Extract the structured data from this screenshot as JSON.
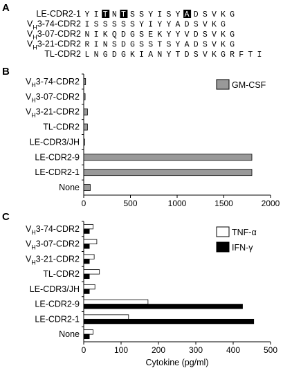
{
  "panels": {
    "a": "A",
    "b": "B",
    "c": "C"
  },
  "sequences": [
    {
      "name_parts": [
        "LE-CDR2-1"
      ],
      "residues": "YITNTSSYISYADSVKG",
      "highlight": [
        2,
        4,
        11
      ]
    },
    {
      "name_parts": [
        "V",
        "H",
        "3-74-CDR2"
      ],
      "residues": "ISSSSSYIYYADSVKG",
      "highlight": []
    },
    {
      "name_parts": [
        "V",
        "H",
        "3-07-CDR2"
      ],
      "residues": "NIKQDGSEKYYVDSVKG",
      "highlight": []
    },
    {
      "name_parts": [
        "V",
        "H",
        "3-21-CDR2"
      ],
      "residues": "RINSDGSSTSYADSVKG",
      "highlight": []
    },
    {
      "name_parts": [
        "TL-CDR2"
      ],
      "residues": "LNGDGKIANYTDSVKGRFTI",
      "highlight": []
    }
  ],
  "chart_data": [
    {
      "type": "bar",
      "orientation": "horizontal",
      "categories": [
        {
          "parts": [
            "V",
            "H",
            "3-74-CDR2"
          ]
        },
        {
          "parts": [
            "V",
            "H",
            "3-07-CDR2"
          ]
        },
        {
          "parts": [
            "V",
            "H",
            "3-21-CDR2"
          ]
        },
        {
          "parts": [
            "TL-CDR2"
          ]
        },
        {
          "parts": [
            "LE-CDR3/JH"
          ]
        },
        {
          "parts": [
            "LE-CDR2-9"
          ]
        },
        {
          "parts": [
            "LE-CDR2-1"
          ]
        },
        {
          "parts": [
            "None"
          ]
        }
      ],
      "series": [
        {
          "name": "GM-CSF",
          "color": "#999999",
          "values": [
            20,
            15,
            40,
            40,
            10,
            1800,
            1800,
            70
          ]
        }
      ],
      "xlim": [
        0,
        2000
      ],
      "xticks": [
        0,
        500,
        1000,
        1500,
        2000
      ],
      "xlabel": "",
      "legend": "top-right"
    },
    {
      "type": "bar",
      "orientation": "horizontal",
      "categories": [
        {
          "parts": [
            "V",
            "H",
            "3-74-CDR2"
          ]
        },
        {
          "parts": [
            "V",
            "H",
            "3-07-CDR2"
          ]
        },
        {
          "parts": [
            "V",
            "H",
            "3-21-CDR2"
          ]
        },
        {
          "parts": [
            "TL-CDR2"
          ]
        },
        {
          "parts": [
            "LE-CDR3/JH"
          ]
        },
        {
          "parts": [
            "LE-CDR2-9"
          ]
        },
        {
          "parts": [
            "LE-CDR2-1"
          ]
        },
        {
          "parts": [
            "None"
          ]
        }
      ],
      "series": [
        {
          "name": "TNF-α",
          "color": "#ffffff",
          "values": [
            25,
            35,
            28,
            42,
            30,
            172,
            120,
            25
          ]
        },
        {
          "name": "IFN-γ",
          "color": "#000000",
          "values": [
            15,
            15,
            15,
            15,
            15,
            425,
            455,
            15
          ]
        }
      ],
      "xlim": [
        0,
        500
      ],
      "xticks": [
        0,
        100,
        200,
        300,
        400,
        500
      ],
      "xlabel": "Cytokine (pg/ml)",
      "legend": "top-right"
    }
  ]
}
